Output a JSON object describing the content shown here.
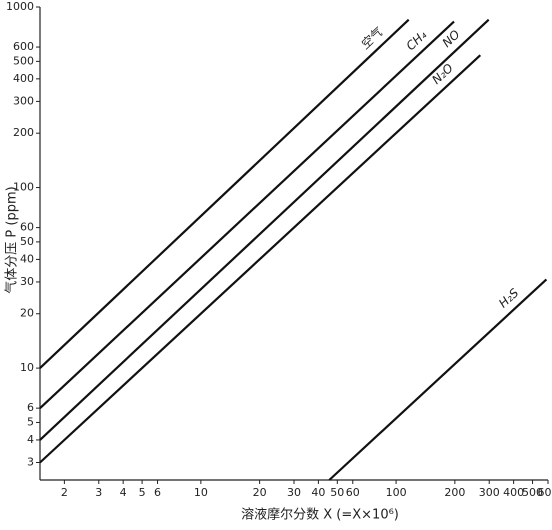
{
  "chart_data": {
    "type": "line",
    "xlabel": "溶液摩尔分数 X (=X×10⁶)",
    "ylabel": "气体分压 P (ppm)",
    "xscale": "log",
    "yscale": "log",
    "grid": false,
    "xlim": [
      1.5,
      600
    ],
    "ylim": [
      2.4,
      1000
    ],
    "xticks": [
      2,
      3,
      4,
      5,
      6,
      10,
      20,
      30,
      40,
      50,
      60,
      100,
      200,
      300,
      400,
      500,
      600
    ],
    "yticks": [
      3,
      4,
      5,
      6,
      10,
      20,
      30,
      40,
      50,
      60,
      100,
      200,
      300,
      400,
      500,
      600,
      1000
    ],
    "series": [
      {
        "name": "空气",
        "color": "#111",
        "x": [
          1.5,
          116
        ],
        "values": [
          10,
          850
        ]
      },
      {
        "name": "CH₄",
        "color": "#111",
        "x": [
          1.5,
          198
        ],
        "values": [
          6,
          830
        ]
      },
      {
        "name": "NO",
        "color": "#111",
        "x": [
          1.5,
          298
        ],
        "values": [
          4,
          850
        ]
      },
      {
        "name": "N₂O",
        "color": "#111",
        "x": [
          1.5,
          270
        ],
        "values": [
          3,
          541
        ]
      },
      {
        "name": "H₂S",
        "color": "#111",
        "x": [
          45.5,
          589
        ],
        "values": [
          2.4,
          31
        ]
      }
    ]
  }
}
